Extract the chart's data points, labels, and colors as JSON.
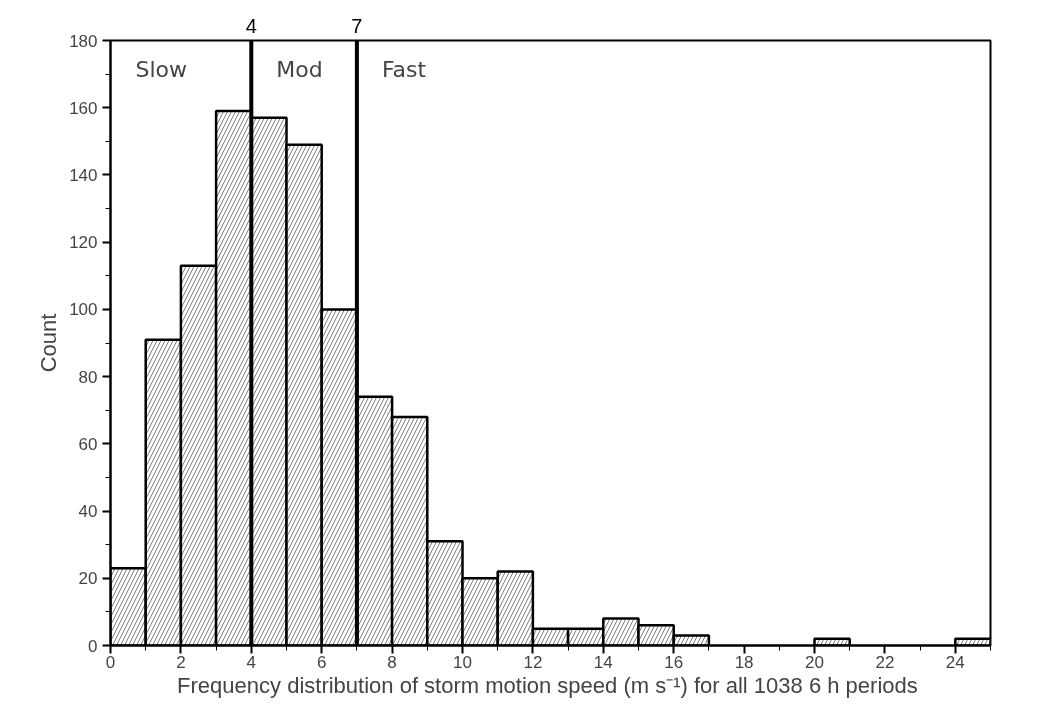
{
  "chart_data": {
    "type": "histogram",
    "xlabel": "Frequency distribution of storm motion speed  (m s⁻¹) for all 1038 6 h periods",
    "ylabel": "Count",
    "bins": [
      0,
      1,
      2,
      3,
      4,
      5,
      6,
      7,
      8,
      9,
      10,
      11,
      12,
      13,
      14,
      15,
      16,
      17,
      18,
      19,
      20,
      21,
      22,
      23,
      24,
      25
    ],
    "values": [
      23,
      91,
      113,
      159,
      157,
      149,
      100,
      74,
      68,
      31,
      20,
      22,
      5,
      5,
      8,
      6,
      3,
      null,
      null,
      null,
      2,
      null,
      null,
      null,
      2
    ],
    "color": "#ffffff",
    "xlim": [
      0,
      25
    ],
    "xticks": [
      0,
      2,
      4,
      6,
      8,
      10,
      12,
      14,
      16,
      18,
      20,
      22,
      24
    ],
    "ylim": [
      0,
      180
    ],
    "yticks": [
      0,
      20,
      40,
      60,
      80,
      100,
      120,
      140,
      160,
      180
    ],
    "grid": false,
    "ref_lines": [
      {
        "axis": "x",
        "value": 4,
        "label": "4",
        "color": "#000000"
      },
      {
        "axis": "x",
        "value": 7,
        "label": "7",
        "color": "#000000"
      }
    ],
    "annotations": [
      "Slow",
      "Mod",
      "Fast"
    ]
  }
}
